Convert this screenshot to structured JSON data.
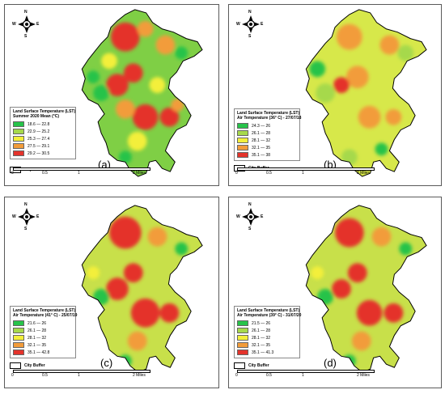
{
  "compass": {
    "n": "N",
    "s": "S",
    "e": "E",
    "w": "W"
  },
  "scale": {
    "ticks": [
      "0",
      "0.5",
      "1",
      "2 Miles"
    ]
  },
  "buffer_label": "City Buffer",
  "panels": [
    {
      "tag": "(a)",
      "legend_title": "Land Surface Temperature (LST)",
      "legend_subtitle": "Summer 2020 Mean (°C)",
      "classes": [
        {
          "label": "18.6 — 22.8",
          "color": "#27c34a"
        },
        {
          "label": "22.9 — 25.2",
          "color": "#a6d94c"
        },
        {
          "label": "25.3 — 27.4",
          "color": "#f3ef3b"
        },
        {
          "label": "27.5 — 29.1",
          "color": "#f29c3a"
        },
        {
          "label": "29.2 — 30.5",
          "color": "#e4332b"
        }
      ]
    },
    {
      "tag": "(b)",
      "legend_title": "Land Surface Temperature (LST)",
      "legend_subtitle": "Air Temperature (36° C) - 27/07/18",
      "classes": [
        {
          "label": "24.3 — 26",
          "color": "#27c34a"
        },
        {
          "label": "26.1 — 28",
          "color": "#a6d94c"
        },
        {
          "label": "28.1 — 32",
          "color": "#f3ef3b"
        },
        {
          "label": "32.1 — 35",
          "color": "#f29c3a"
        },
        {
          "label": "35.1 — 38",
          "color": "#e4332b"
        }
      ]
    },
    {
      "tag": "(c)",
      "legend_title": "Land Surface Temperature (LST)",
      "legend_subtitle": "Air Temperature (41° C) - 25/07/19",
      "classes": [
        {
          "label": "21.6 — 26",
          "color": "#27c34a"
        },
        {
          "label": "26.1 — 28",
          "color": "#a6d94c"
        },
        {
          "label": "28.1 — 32",
          "color": "#f3ef3b"
        },
        {
          "label": "32.1 — 35",
          "color": "#f29c3a"
        },
        {
          "label": "35.1 — 42.8",
          "color": "#e4332b"
        }
      ]
    },
    {
      "tag": "(d)",
      "legend_title": "Land Surface Temperature (LST)",
      "legend_subtitle": "Air Temperature (39° C) - 31/07/20",
      "classes": [
        {
          "label": "21.5 — 26",
          "color": "#27c34a"
        },
        {
          "label": "26.1 — 28",
          "color": "#a6d94c"
        },
        {
          "label": "28.1 — 32",
          "color": "#f3ef3b"
        },
        {
          "label": "32.1 — 35",
          "color": "#f29c3a"
        },
        {
          "label": "35.1 — 41.3",
          "color": "#e4332b"
        }
      ]
    }
  ]
}
